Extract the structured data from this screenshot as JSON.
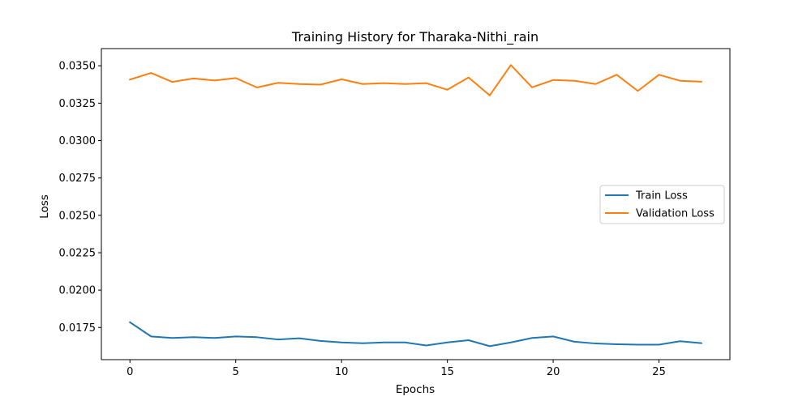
{
  "chart_data": {
    "type": "line",
    "title": "Training History for Tharaka-Nithi_rain",
    "xlabel": "Epochs",
    "ylabel": "Loss",
    "xlim": [
      -1.35,
      28.35
    ],
    "ylim": [
      0.01535,
      0.03615
    ],
    "xticks": [
      0,
      5,
      10,
      15,
      20,
      25
    ],
    "yticks": [
      0.0175,
      0.02,
      0.0225,
      0.025,
      0.0275,
      0.03,
      0.0325,
      0.035
    ],
    "xtick_labels": [
      "0",
      "5",
      "10",
      "15",
      "20",
      "25"
    ],
    "ytick_labels": [
      "0.0175",
      "0.0200",
      "0.0225",
      "0.0250",
      "0.0275",
      "0.0300",
      "0.0325",
      "0.0350"
    ],
    "grid": false,
    "legend_position": "center-right",
    "x": [
      0,
      1,
      2,
      3,
      4,
      5,
      6,
      7,
      8,
      9,
      10,
      11,
      12,
      13,
      14,
      15,
      16,
      17,
      18,
      19,
      20,
      21,
      22,
      23,
      24,
      25,
      26,
      27
    ],
    "series": [
      {
        "name": "Train Loss",
        "color": "#1f77b4",
        "values": [
          0.01785,
          0.0169,
          0.0168,
          0.01685,
          0.0168,
          0.0169,
          0.01685,
          0.0167,
          0.01678,
          0.0166,
          0.0165,
          0.01645,
          0.0165,
          0.0165,
          0.0163,
          0.0165,
          0.01665,
          0.01625,
          0.0165,
          0.0168,
          0.0169,
          0.01655,
          0.01643,
          0.01638,
          0.01635,
          0.01635,
          0.01658,
          0.01645
        ]
      },
      {
        "name": "Validation Loss",
        "color": "#ff7f0e",
        "values": [
          0.03408,
          0.03452,
          0.03392,
          0.03415,
          0.03402,
          0.03418,
          0.03355,
          0.03386,
          0.03378,
          0.03374,
          0.0341,
          0.03378,
          0.03384,
          0.03378,
          0.03384,
          0.0334,
          0.03422,
          0.03302,
          0.03505,
          0.03356,
          0.03405,
          0.034,
          0.03378,
          0.0344,
          0.03332,
          0.0344,
          0.034,
          0.03394
        ]
      }
    ]
  }
}
